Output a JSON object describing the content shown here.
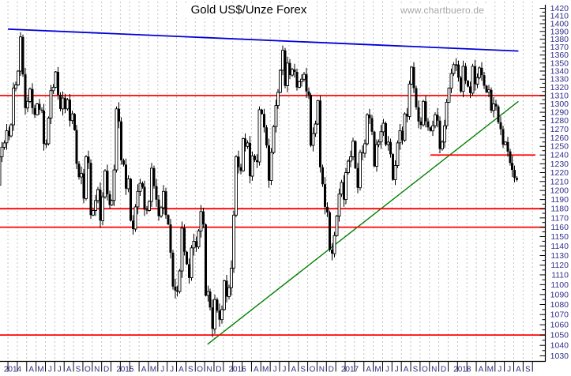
{
  "page": {
    "watermark": "www.chartbuero.de"
  },
  "chart_data": {
    "type": "candlestick",
    "title": "Gold US$/Unze Forex",
    "timeframe": "weekly",
    "y_scale": "log",
    "ylim": [
      1025,
      1425
    ],
    "y_tick_step": 10,
    "y_minor_tick_step": 5,
    "y_ticks": [
      1420,
      1410,
      1400,
      1390,
      1380,
      1370,
      1360,
      1350,
      1340,
      1330,
      1320,
      1310,
      1300,
      1290,
      1280,
      1270,
      1260,
      1250,
      1240,
      1230,
      1220,
      1210,
      1200,
      1190,
      1180,
      1170,
      1160,
      1150,
      1140,
      1130,
      1120,
      1110,
      1100,
      1090,
      1080,
      1070,
      1060,
      1050,
      1040,
      1030
    ],
    "x_start": "Jan 2014",
    "x_end": "Sep 2018",
    "x_month_labels": [
      "2014",
      "",
      "",
      "A",
      "M",
      "J",
      "J",
      "A",
      "S",
      "O",
      "N",
      "D",
      "2015",
      "",
      "",
      "A",
      "M",
      "J",
      "J",
      "A",
      "S",
      "O",
      "N",
      "D",
      "2016",
      "",
      "",
      "A",
      "M",
      "J",
      "J",
      "A",
      "S",
      "O",
      "N",
      "D",
      "2017",
      "",
      "",
      "A",
      "M",
      "J",
      "J",
      "A",
      "S",
      "O",
      "N",
      "D",
      "2018",
      "",
      "",
      "A",
      "M",
      "J",
      "J",
      "A",
      "S"
    ],
    "grid": "vertical-dashed",
    "legend": "none",
    "colors": {
      "grid": "#c3c3c3",
      "axis": "#000000",
      "labels": "#30308a",
      "support_resistance": "#ff0000",
      "trend_down": "#0000d8",
      "trend_up": "#008000",
      "candle_up_fill": "#ffffff",
      "candle_down_fill": "#000000",
      "candle_outline": "#000000"
    },
    "weeks_per_month": 4,
    "first_open": 1206,
    "weekly_closes": [
      1238,
      1249,
      1254,
      1268,
      1262,
      1275,
      1319,
      1323,
      1340,
      1383,
      1336,
      1295,
      1303,
      1318,
      1295,
      1287,
      1300,
      1293,
      1292,
      1253,
      1253,
      1283,
      1316,
      1320,
      1339,
      1311,
      1294,
      1307,
      1294,
      1305,
      1280,
      1288,
      1269,
      1230,
      1215,
      1219,
      1191,
      1238,
      1231,
      1173,
      1178,
      1189,
      1201,
      1167,
      1193,
      1222,
      1196,
      1184,
      1189,
      1223,
      1294,
      1279,
      1234,
      1229,
      1202,
      1213,
      1167,
      1158,
      1182,
      1199,
      1208,
      1204,
      1179,
      1178,
      1188,
      1225,
      1205,
      1190,
      1172,
      1181,
      1199,
      1173,
      1163,
      1133,
      1098,
      1094,
      1093,
      1114,
      1159,
      1134,
      1121,
      1107,
      1138,
      1145,
      1139,
      1156,
      1177,
      1163,
      1089,
      1093,
      1077,
      1056,
      1085,
      1074,
      1065,
      1075,
      1104,
      1088,
      1097,
      1117,
      1173,
      1238,
      1226,
      1222,
      1259,
      1250,
      1254,
      1216,
      1239,
      1234,
      1232,
      1293,
      1288,
      1272,
      1251,
      1211,
      1243,
      1273,
      1298,
      1314,
      1341,
      1366,
      1322,
      1350,
      1335,
      1342,
      1339,
      1320,
      1327,
      1330,
      1336,
      1315,
      1311,
      1251,
      1265,
      1276,
      1304,
      1226,
      1207,
      1182,
      1176,
      1136,
      1132,
      1151,
      1172,
      1196,
      1209,
      1190,
      1220,
      1233,
      1238,
      1256,
      1225,
      1203,
      1243,
      1242,
      1253,
      1287,
      1283,
      1267,
      1227,
      1252,
      1255,
      1267,
      1277,
      1252,
      1255,
      1241,
      1212,
      1228,
      1254,
      1268,
      1257,
      1288,
      1285,
      1324,
      1345,
      1319,
      1296,
      1279,
      1275,
      1303,
      1279,
      1272,
      1268,
      1274,
      1287,
      1280,
      1247,
      1255,
      1274,
      1302,
      1319,
      1337,
      1348,
      1348,
      1332,
      1315,
      1346,
      1328,
      1321,
      1313,
      1346,
      1324,
      1332,
      1344,
      1335,
      1322,
      1314,
      1317,
      1292,
      1300,
      1297,
      1278,
      1270,
      1252,
      1255,
      1244,
      1231,
      1223,
      1214,
      1212
    ],
    "support_resistance": [
      {
        "value": 1310,
        "span": "full"
      },
      {
        "value": 1240,
        "span": "right-partial",
        "start_month": 46.1
      },
      {
        "value": 1180,
        "span": "full"
      },
      {
        "value": 1160,
        "span": "full"
      },
      {
        "value": 1050,
        "span": "full"
      }
    ],
    "trendlines": [
      {
        "name": "descending-resistance",
        "color": "#0000d8",
        "width": 1.8,
        "from_month": 1.0,
        "from_value": 1393,
        "to_month": 55.5,
        "to_value": 1365
      },
      {
        "name": "ascending-support",
        "color": "#008000",
        "width": 1.4,
        "from_month": 22.3,
        "from_value": 1041,
        "to_month": 55.5,
        "to_value": 1303
      }
    ]
  }
}
